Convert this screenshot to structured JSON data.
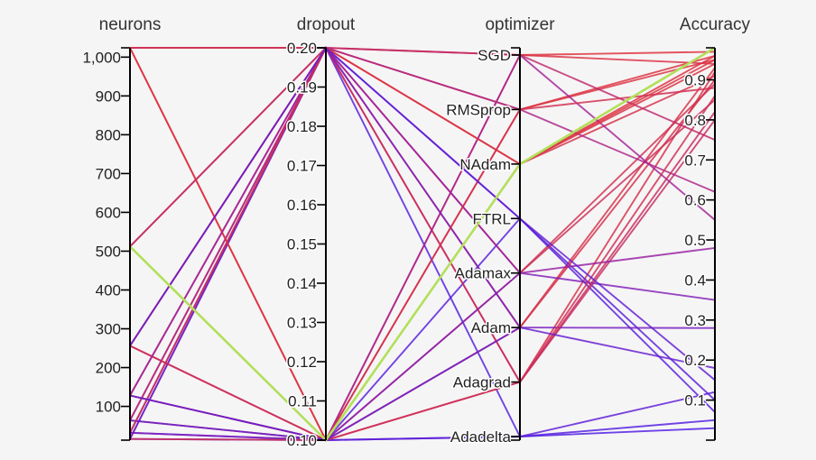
{
  "chart_data": {
    "type": "parallel_coordinates",
    "axes": [
      {
        "name": "neurons",
        "kind": "numeric",
        "range": [
          13,
          1024
        ],
        "ticks": [
          100,
          200,
          300,
          400,
          500,
          600,
          700,
          800,
          900,
          1000
        ],
        "tick_labels": [
          "100",
          "200",
          "300",
          "400",
          "500",
          "600",
          "700",
          "800",
          "900",
          "1,000"
        ]
      },
      {
        "name": "dropout",
        "kind": "numeric",
        "range": [
          0.1,
          0.2
        ],
        "ticks": [
          0.1,
          0.11,
          0.12,
          0.13,
          0.14,
          0.15,
          0.16,
          0.17,
          0.18,
          0.19,
          0.2
        ],
        "tick_labels": [
          "0.10",
          "0.11",
          "0.12",
          "0.13",
          "0.14",
          "0.15",
          "0.16",
          "0.17",
          "0.18",
          "0.19",
          "0.20"
        ]
      },
      {
        "name": "optimizer",
        "kind": "categorical",
        "categories": [
          "SGD",
          "RMSprop",
          "NAdam",
          "FTRL",
          "Adamax",
          "Adam",
          "Adagrad",
          "Adadelta"
        ]
      },
      {
        "name": "Accuracy",
        "kind": "numeric",
        "range": [
          0,
          0.98
        ],
        "ticks": [
          0.1,
          0.2,
          0.3,
          0.4,
          0.5,
          0.6,
          0.7,
          0.8,
          0.9
        ],
        "tick_labels": [
          "0.1",
          "0.2",
          "0.3",
          "0.4",
          "0.5",
          "0.6",
          "0.7",
          "0.8",
          "0.9"
        ]
      }
    ],
    "color_scale": {
      "low": "#4a1be8",
      "mid": "#9a1fa3",
      "high": "#e0303a",
      "best": "#b2e05a"
    },
    "best_trial": [
      512,
      0.1,
      "NAdam",
      0.98
    ],
    "trials": [
      [
        1024,
        0.2,
        "SGD",
        0.97
      ],
      [
        1024,
        0.1,
        "RMSprop",
        0.96
      ],
      [
        512,
        0.2,
        "RMSprop",
        0.95
      ],
      [
        256,
        0.2,
        "NAdam",
        0.96
      ],
      [
        256,
        0.1,
        "SGD",
        0.94
      ],
      [
        128,
        0.2,
        "Adam",
        0.93
      ],
      [
        128,
        0.1,
        "NAdam",
        0.91
      ],
      [
        64,
        0.2,
        "Adagrad",
        0.92
      ],
      [
        64,
        0.1,
        "Adamax",
        0.89
      ],
      [
        32,
        0.2,
        "Adadelta",
        0.05
      ],
      [
        32,
        0.1,
        "Adadelta",
        0.03
      ],
      [
        16,
        0.2,
        "FTRL",
        0.1
      ],
      [
        16,
        0.1,
        "FTRL",
        0.07
      ],
      [
        1024,
        0.2,
        "Adamax",
        0.85
      ],
      [
        512,
        0.1,
        "Adam",
        0.9
      ],
      [
        256,
        0.2,
        "Adagrad",
        0.8
      ],
      [
        128,
        0.1,
        "SGD",
        0.55
      ],
      [
        64,
        0.2,
        "RMSprop",
        0.62
      ],
      [
        32,
        0.1,
        "Adamax",
        0.35
      ],
      [
        16,
        0.2,
        "Adam",
        0.28
      ],
      [
        512,
        0.2,
        "SGD",
        0.75
      ],
      [
        1024,
        0.1,
        "NAdam",
        0.95
      ],
      [
        256,
        0.1,
        "Adagrad",
        0.82
      ],
      [
        128,
        0.2,
        "Adamax",
        0.48
      ],
      [
        64,
        0.1,
        "Adadelta",
        0.12
      ],
      [
        32,
        0.2,
        "NAdam",
        0.94
      ],
      [
        16,
        0.1,
        "RMSprop",
        0.88
      ],
      [
        512,
        0.1,
        "Adagrad",
        0.86
      ],
      [
        256,
        0.2,
        "FTRL",
        0.15
      ],
      [
        128,
        0.1,
        "Adam",
        0.18
      ]
    ]
  }
}
